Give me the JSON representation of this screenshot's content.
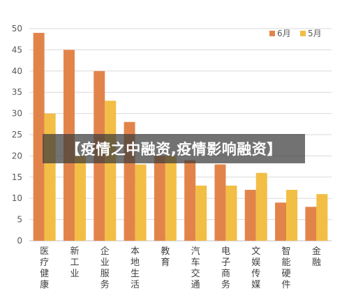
{
  "chart_data": {
    "type": "bar",
    "categories": [
      "医疗健康",
      "新工业",
      "企业服务",
      "本地生活",
      "教育",
      "汽车交通",
      "电子商务",
      "文娱传媒",
      "智能硬件",
      "金融"
    ],
    "series": [
      {
        "name": "6月",
        "color": "#E2844A",
        "values": [
          49,
          45,
          40,
          28,
          20,
          19,
          18,
          12,
          9,
          8
        ]
      },
      {
        "name": "5月",
        "color": "#F2BE45",
        "values": [
          30,
          20,
          33,
          18,
          20,
          13,
          13,
          16,
          12,
          11
        ]
      }
    ],
    "ylim": [
      0,
      50
    ],
    "yticks": [
      0,
      5,
      10,
      15,
      20,
      25,
      30,
      35,
      40,
      45,
      50
    ],
    "grid": true,
    "legend_position": "top-right"
  },
  "banner_text": "【疫情之中融资,疫情影响融资】"
}
